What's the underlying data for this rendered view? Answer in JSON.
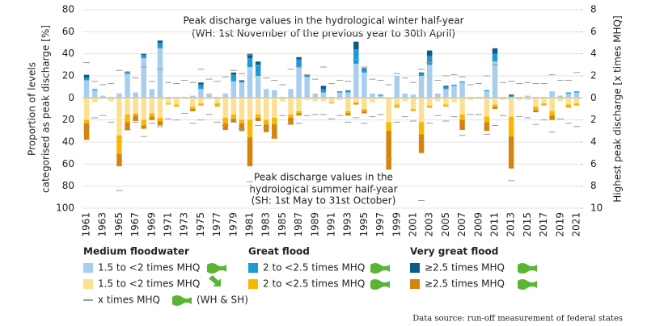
{
  "chart_data": {
    "type": "bar",
    "stacked": true,
    "annotations": [
      "Peak discharge values in the hydrological winter half-year",
      "(WH: 1st November of the previous year to 30th April)",
      "Peak discharge values in the",
      "hydrological summer half-year",
      "(SH: 1st May to 31st October)"
    ],
    "ylabel": [
      "Proportion of levels",
      "categorised as peak discharge [%]"
    ],
    "y2label": "Highest peak discharge [x times MHQ]",
    "source": "Data source: run-off measurement of federal states",
    "categories": [
      "1961",
      null,
      "1963",
      null,
      "1965",
      null,
      "1967",
      null,
      "1969",
      null,
      "1971",
      null,
      "1973",
      null,
      "1975",
      null,
      "1977",
      null,
      "1979",
      null,
      "1981",
      null,
      "1983",
      null,
      "1985",
      null,
      "1987",
      null,
      "1989",
      null,
      "1991",
      null,
      "1993",
      null,
      "1995",
      null,
      "1997",
      null,
      "1999",
      null,
      "2001",
      null,
      "2003",
      null,
      "2005",
      null,
      "2007",
      null,
      "2009",
      null,
      "2011",
      null,
      "2013",
      null,
      "2015",
      null,
      "2017",
      null,
      "2019",
      null,
      "2021"
    ],
    "legend": {
      "groups": [
        "Medium floodwater",
        "Great flood",
        "Very great flood"
      ]
    },
    "series": [
      {
        "name": "1.5 to <2 times MHQ",
        "color": "#a7cdef",
        "values": [
          16,
          7,
          2,
          1,
          4,
          22,
          5,
          36,
          8,
          45,
          1,
          1,
          1,
          2,
          8,
          4,
          1,
          4,
          15,
          14,
          28,
          20,
          8,
          7,
          1,
          8,
          28,
          19,
          4,
          5,
          1,
          5,
          5,
          31,
          23,
          4,
          2,
          0,
          20,
          4,
          3,
          20,
          30,
          4,
          8,
          11,
          14,
          1,
          1,
          6,
          33,
          1,
          1,
          1,
          2,
          1,
          1,
          6,
          2,
          4,
          5
        ]
      },
      {
        "name": "2 to <2.5 times MHQ",
        "color": "#1c9ad6",
        "values": [
          2,
          1,
          0,
          0,
          0,
          2,
          0,
          3,
          0,
          5,
          0,
          0,
          0,
          0,
          4,
          0,
          0,
          0,
          6,
          1,
          8,
          10,
          0,
          0,
          0,
          0,
          7,
          2,
          0,
          3,
          0,
          1,
          2,
          13,
          3,
          0,
          1,
          0,
          0,
          0,
          0,
          2,
          8,
          0,
          2,
          1,
          1,
          0,
          0,
          1,
          7,
          0,
          1,
          0,
          0,
          0,
          0,
          0,
          0,
          1,
          1
        ]
      },
      {
        "name": "≥2.5 times MHQ",
        "color": "#0e5b85",
        "values": [
          3,
          0,
          0,
          0,
          0,
          0,
          0,
          1,
          0,
          2,
          0,
          0,
          0,
          0,
          2,
          0,
          0,
          0,
          2,
          1,
          4,
          3,
          0,
          0,
          0,
          0,
          2,
          0,
          0,
          3,
          0,
          0,
          0,
          7,
          1,
          0,
          0,
          0,
          0,
          0,
          0,
          1,
          5,
          0,
          1,
          0,
          0,
          0,
          0,
          0,
          5,
          0,
          1,
          0,
          0,
          0,
          0,
          0,
          0,
          0,
          0
        ]
      },
      {
        "name": "1.5 to <2 times MHQ",
        "color": "#fde08f",
        "values": [
          -20,
          -4,
          -1,
          -3,
          -34,
          -15,
          -14,
          -20,
          -14,
          -18,
          -5,
          -6,
          -1,
          -8,
          -5,
          -1,
          -5,
          -18,
          -15,
          -20,
          -20,
          -15,
          -20,
          -18,
          -3,
          -15,
          -12,
          -2,
          -3,
          -3,
          -4,
          -2,
          -12,
          -4,
          -10,
          -4,
          -1,
          -22,
          -6,
          -3,
          -10,
          -22,
          -7,
          -3,
          -6,
          -4,
          -15,
          -2,
          -1,
          -17,
          -6,
          -2,
          -17,
          -2,
          -2,
          -8,
          -5,
          -12,
          -3,
          -6,
          -5
        ]
      },
      {
        "name": "2 to <2.5 times MHQ",
        "color": "#f8b700",
        "values": [
          -3,
          0,
          0,
          0,
          -17,
          -7,
          -2,
          -5,
          -3,
          -3,
          -1,
          -2,
          0,
          -2,
          -2,
          0,
          -3,
          -5,
          -4,
          -3,
          -16,
          -3,
          -4,
          -6,
          0,
          -3,
          -2,
          0,
          0,
          0,
          -1,
          0,
          -2,
          -1,
          -2,
          0,
          0,
          -8,
          -3,
          0,
          -2,
          -11,
          -2,
          0,
          -2,
          0,
          -5,
          0,
          0,
          -5,
          -2,
          0,
          -18,
          0,
          0,
          -3,
          -2,
          -4,
          0,
          -3,
          -2
        ]
      },
      {
        "name": "≥2.5 times MHQ",
        "color": "#d4830c",
        "values": [
          -15,
          0,
          0,
          0,
          -11,
          -7,
          -5,
          -3,
          -3,
          -4,
          0,
          0,
          0,
          -2,
          0,
          0,
          0,
          -6,
          -3,
          -7,
          -26,
          -3,
          -7,
          -13,
          0,
          -6,
          -2,
          0,
          0,
          0,
          0,
          0,
          -2,
          -1,
          -2,
          0,
          0,
          -35,
          0,
          0,
          0,
          -17,
          0,
          0,
          0,
          0,
          -9,
          0,
          0,
          -8,
          -2,
          0,
          -29,
          0,
          0,
          -2,
          0,
          -4,
          0,
          0,
          0
        ]
      }
    ],
    "mhq": {
      "name": "x times MHQ",
      "note": "(WH & SH)",
      "color": "#9a9a9a",
      "axis": "y2",
      "winter": [
        3.2,
        1.5,
        1.2,
        1.3,
        2.5,
        2.2,
        1.8,
        2.8,
        1.5,
        2.6,
        1.4,
        1.3,
        1.6,
        1.4,
        2.6,
        1.7,
        1.5,
        1.9,
        2.5,
        2.2,
        3.9,
        2.9,
        1.8,
        1.6,
        1.2,
        2.6,
        2.8,
        2.1,
        1.7,
        2.8,
        1.3,
        1.6,
        1.5,
        3.5,
        2.8,
        1.7,
        1.6,
        1.2,
        2.2,
        1.8,
        1.4,
        2.6,
        3.2,
        1.6,
        2.0,
        2.1,
        1.9,
        1.2,
        1.3,
        2.0,
        3.0,
        1.4,
        1.5,
        1.3,
        1.4,
        1.3,
        1.3,
        2.1,
        1.6,
        1.6,
        2.3
      ],
      "summer": [
        -2.7,
        -1.8,
        -1.6,
        -2.2,
        -8.4,
        -2.9,
        -2.2,
        -3.5,
        -2.3,
        -2.6,
        -1.9,
        -2.0,
        -1.4,
        -2.3,
        -2.0,
        -1.5,
        -2.2,
        -2.5,
        -2.2,
        -2.8,
        -7.6,
        -2.5,
        -2.7,
        -3.6,
        -1.6,
        -2.4,
        -2.3,
        -1.6,
        -1.5,
        -1.5,
        -1.9,
        -1.6,
        -2.2,
        -1.8,
        -2.3,
        -1.7,
        -1.5,
        -5.6,
        -2.2,
        -1.7,
        -2.1,
        -9.3,
        -2.3,
        -1.6,
        -2.1,
        -1.7,
        -3.4,
        -1.5,
        -1.5,
        -3.3,
        -2.5,
        -1.6,
        -7.5,
        -1.7,
        -1.8,
        -2.4,
        -2.0,
        -3.1,
        -1.9,
        -2.3,
        -2.6
      ]
    },
    "ylim": [
      -100,
      80
    ],
    "yticks": [
      {
        "value": -100,
        "label": "100"
      },
      {
        "value": -80,
        "label": "80"
      },
      {
        "value": -60,
        "label": "60"
      },
      {
        "value": -40,
        "label": "40"
      },
      {
        "value": -20,
        "label": "20"
      },
      0,
      20,
      40,
      60,
      80
    ],
    "y2lim": [
      -10,
      8
    ],
    "y2ticks": [
      {
        "value": -10,
        "label": "10"
      },
      {
        "value": -8,
        "label": "8"
      },
      {
        "value": -6,
        "label": "6"
      },
      {
        "value": -4,
        "label": "4"
      },
      {
        "value": -2,
        "label": "2"
      },
      0,
      2,
      4,
      6,
      8
    ],
    "grid": true
  }
}
